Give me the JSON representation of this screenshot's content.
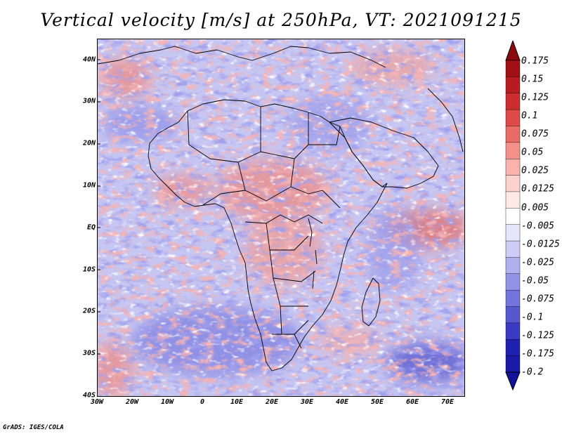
{
  "title": "Vertical velocity [m/s] at 250hPa, VT: 2021091215",
  "footer": "GrADS: IGES/COLA",
  "map": {
    "lon_range": [
      -30,
      75
    ],
    "lat_range": [
      -40,
      45
    ],
    "y_axis_labels": [
      {
        "label": "40N",
        "lat": 40
      },
      {
        "label": "30N",
        "lat": 30
      },
      {
        "label": "20N",
        "lat": 20
      },
      {
        "label": "10N",
        "lat": 10
      },
      {
        "label": "EQ",
        "lat": 0
      },
      {
        "label": "10S",
        "lat": -10
      },
      {
        "label": "20S",
        "lat": -20
      },
      {
        "label": "30S",
        "lat": -30
      },
      {
        "label": "40S",
        "lat": -40
      }
    ],
    "x_axis_labels": [
      {
        "label": "30W",
        "lon": -30
      },
      {
        "label": "20W",
        "lon": -20
      },
      {
        "label": "10W",
        "lon": -10
      },
      {
        "label": "0",
        "lon": 0
      },
      {
        "label": "10E",
        "lon": 10
      },
      {
        "label": "20E",
        "lon": 20
      },
      {
        "label": "30E",
        "lon": 30
      },
      {
        "label": "40E",
        "lon": 40
      },
      {
        "label": "50E",
        "lon": 50
      },
      {
        "label": "60E",
        "lon": 60
      },
      {
        "label": "70E",
        "lon": 70
      }
    ]
  },
  "colorbar": {
    "levels": [
      {
        "label": "0.175",
        "color": "#a00f14"
      },
      {
        "label": "0.15",
        "color": "#b81c22"
      },
      {
        "label": "0.125",
        "color": "#cc2d30"
      },
      {
        "label": "0.1",
        "color": "#de4a48"
      },
      {
        "label": "0.075",
        "color": "#ea6c66"
      },
      {
        "label": "0.05",
        "color": "#f29089"
      },
      {
        "label": "0.025",
        "color": "#f8b3ad"
      },
      {
        "label": "0.0125",
        "color": "#fbd2ce"
      },
      {
        "label": "0.005",
        "color": "#fde9e6"
      },
      {
        "label": "-0.005",
        "color": "#ffffff"
      },
      {
        "label": "-0.0125",
        "color": "#e6e6fb"
      },
      {
        "label": "-0.025",
        "color": "#ccccf5"
      },
      {
        "label": "-0.05",
        "color": "#b0b0ee"
      },
      {
        "label": "-0.075",
        "color": "#9393e6"
      },
      {
        "label": "-0.1",
        "color": "#7474dc"
      },
      {
        "label": "-0.125",
        "color": "#5757d0"
      },
      {
        "label": "-0.175",
        "color": "#3a3ac2"
      },
      {
        "label": "-0.2",
        "color": "#2020b0"
      }
    ],
    "top_arrow_color": "#8a0a0e",
    "bottom_arrow_color": "#12129a",
    "bands_top_to_bottom": [
      "#a00f14",
      "#b81c22",
      "#cc2d30",
      "#de4a48",
      "#ea6c66",
      "#f29089",
      "#f8b3ad",
      "#fbd2ce",
      "#fde9e6",
      "#ffffff",
      "#e6e6fb",
      "#ccccf5",
      "#b0b0ee",
      "#9393e6",
      "#7474dc",
      "#5757d0",
      "#3a3ac2",
      "#2020b0",
      "#1a1aa6"
    ]
  },
  "field_colors": {
    "background": "#c6c6f2",
    "positive": "#ef8a84",
    "negative": "#7a7ae0"
  }
}
